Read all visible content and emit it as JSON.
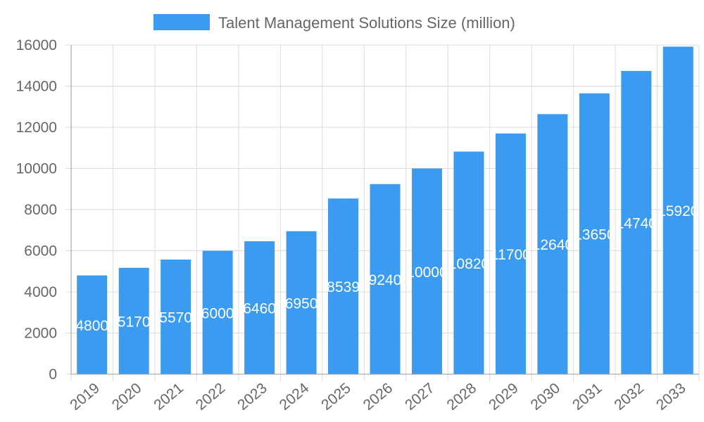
{
  "chart_data": {
    "type": "bar",
    "title": "",
    "xlabel": "",
    "ylabel": "",
    "categories": [
      "2019",
      "2020",
      "2021",
      "2022",
      "2023",
      "2024",
      "2025",
      "2026",
      "2027",
      "2028",
      "2029",
      "2030",
      "2031",
      "2032",
      "2033"
    ],
    "series": [
      {
        "name": "Talent Management Solutions Size (million)",
        "values": [
          4800,
          5170,
          5570,
          6000,
          6460,
          6950,
          8539,
          9240,
          10000,
          10820,
          11700,
          12640,
          13650,
          14740,
          15920
        ],
        "color": "#3a9bf0"
      }
    ],
    "ylim": [
      0,
      16000
    ],
    "yticks": [
      0,
      2000,
      4000,
      6000,
      8000,
      10000,
      12000,
      14000,
      16000
    ],
    "grid": true,
    "legend": "top",
    "data_labels": true
  }
}
